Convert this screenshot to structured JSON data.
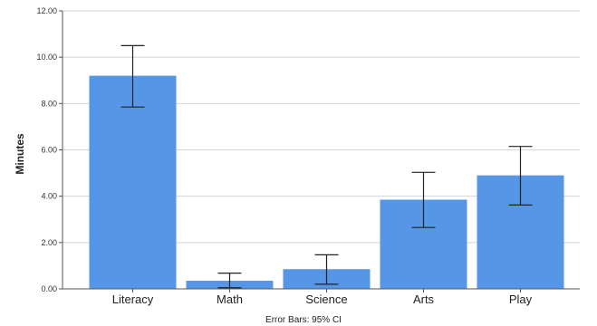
{
  "chart_data": {
    "type": "bar",
    "categories": [
      "Literacy",
      "Math",
      "Science",
      "Arts",
      "Play"
    ],
    "values": [
      9.2,
      0.35,
      0.85,
      3.85,
      4.9
    ],
    "error_bars": [
      {
        "lower": 7.85,
        "upper": 10.5
      },
      {
        "lower": 0.05,
        "upper": 0.68
      },
      {
        "lower": 0.2,
        "upper": 1.47
      },
      {
        "lower": 2.65,
        "upper": 5.03
      },
      {
        "lower": 3.62,
        "upper": 6.15
      }
    ],
    "ylabel": "Minutes",
    "xlabel": "",
    "ylim": [
      0,
      12
    ],
    "y_ticks": [
      "0.00",
      "2.00",
      "4.00",
      "6.00",
      "8.00",
      "10.00",
      "12.00"
    ],
    "y_tick_values": [
      0,
      2,
      4,
      6,
      8,
      10,
      12
    ],
    "grid": true,
    "footnote": "Error Bars: 95% CI",
    "colors": {
      "bar": "#5596e6",
      "grid": "#d4d4d4",
      "axis": "#555555",
      "error_bar": "#222222"
    }
  }
}
